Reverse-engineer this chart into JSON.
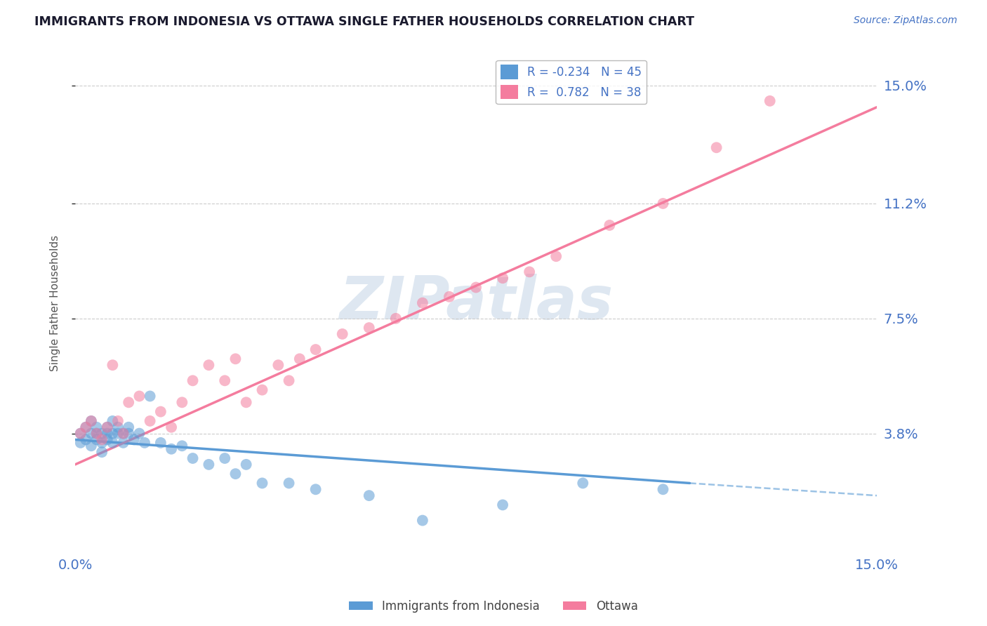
{
  "title": "IMMIGRANTS FROM INDONESIA VS OTTAWA SINGLE FATHER HOUSEHOLDS CORRELATION CHART",
  "source_text": "Source: ZipAtlas.com",
  "ylabel": "Single Father Households",
  "watermark": "ZIPatlas",
  "xlim": [
    0.0,
    0.15
  ],
  "ylim": [
    0.0,
    0.16
  ],
  "yticks": [
    0.038,
    0.075,
    0.112,
    0.15
  ],
  "ytick_labels": [
    "3.8%",
    "7.5%",
    "11.2%",
    "15.0%"
  ],
  "series1_name": "Immigrants from Indonesia",
  "series1_R": -0.234,
  "series1_N": 45,
  "series1_color": "#5b9bd5",
  "series2_name": "Ottawa",
  "series2_R": 0.782,
  "series2_N": 38,
  "series2_color": "#f47c9e",
  "background_color": "#ffffff",
  "grid_color": "#cccccc",
  "title_color": "#1a1a2e",
  "axis_label_color": "#4472c4",
  "scatter1_x": [
    0.001,
    0.001,
    0.002,
    0.002,
    0.003,
    0.003,
    0.003,
    0.004,
    0.004,
    0.004,
    0.005,
    0.005,
    0.005,
    0.006,
    0.006,
    0.006,
    0.007,
    0.007,
    0.007,
    0.008,
    0.008,
    0.009,
    0.009,
    0.01,
    0.01,
    0.011,
    0.012,
    0.013,
    0.014,
    0.016,
    0.018,
    0.02,
    0.022,
    0.025,
    0.028,
    0.03,
    0.032,
    0.035,
    0.04,
    0.045,
    0.055,
    0.065,
    0.08,
    0.095,
    0.11
  ],
  "scatter1_y": [
    0.038,
    0.035,
    0.04,
    0.036,
    0.042,
    0.038,
    0.034,
    0.04,
    0.036,
    0.038,
    0.038,
    0.035,
    0.032,
    0.038,
    0.04,
    0.036,
    0.042,
    0.038,
    0.035,
    0.04,
    0.038,
    0.038,
    0.035,
    0.04,
    0.038,
    0.036,
    0.038,
    0.035,
    0.05,
    0.035,
    0.033,
    0.034,
    0.03,
    0.028,
    0.03,
    0.025,
    0.028,
    0.022,
    0.022,
    0.02,
    0.018,
    0.01,
    0.015,
    0.022,
    0.02
  ],
  "scatter2_x": [
    0.001,
    0.002,
    0.003,
    0.004,
    0.005,
    0.006,
    0.007,
    0.008,
    0.009,
    0.01,
    0.012,
    0.014,
    0.016,
    0.018,
    0.02,
    0.022,
    0.025,
    0.028,
    0.03,
    0.032,
    0.035,
    0.038,
    0.04,
    0.042,
    0.045,
    0.05,
    0.055,
    0.06,
    0.065,
    0.07,
    0.075,
    0.08,
    0.085,
    0.09,
    0.1,
    0.11,
    0.12,
    0.13
  ],
  "scatter2_y": [
    0.038,
    0.04,
    0.042,
    0.038,
    0.036,
    0.04,
    0.06,
    0.042,
    0.038,
    0.048,
    0.05,
    0.042,
    0.045,
    0.04,
    0.048,
    0.055,
    0.06,
    0.055,
    0.062,
    0.048,
    0.052,
    0.06,
    0.055,
    0.062,
    0.065,
    0.07,
    0.072,
    0.075,
    0.08,
    0.082,
    0.085,
    0.088,
    0.09,
    0.095,
    0.105,
    0.112,
    0.13,
    0.145
  ],
  "line1_x0": 0.0,
  "line1_y0": 0.036,
  "line1_x1": 0.115,
  "line1_y1": 0.022,
  "line1_dash_x0": 0.115,
  "line1_dash_y0": 0.022,
  "line1_dash_x1": 0.15,
  "line1_dash_y1": 0.018,
  "line2_x0": 0.0,
  "line2_y0": 0.028,
  "line2_x1": 0.15,
  "line2_y1": 0.143
}
